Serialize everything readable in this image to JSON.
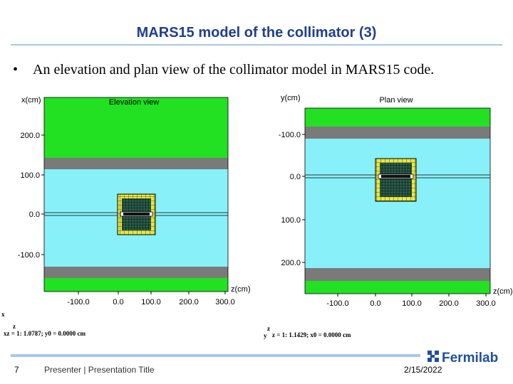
{
  "header": {
    "title": "MARS15 model of the collimator (3)"
  },
  "bullet": "An elevation and plan view of the collimator model in MARS15 code.",
  "panels": [
    {
      "title": "Elevation view",
      "y_label": "x(cm)",
      "x_label": "z(cm)",
      "y_ticks": [
        "200.0",
        "100.0",
        "0.0",
        "-100.0"
      ],
      "x_ticks": [
        "-100.0",
        "0.0",
        "100.0",
        "200.0",
        "300.0"
      ],
      "axis_marks": [
        "x",
        "z"
      ],
      "scale_note": "xz = 1: 1.0787; y0 = 0.0000 cm"
    },
    {
      "title": "Plan view",
      "y_label": "y(cm)",
      "x_label": "z(cm)",
      "y_ticks": [
        "-100.0",
        "0.0",
        "100.0",
        "200.0"
      ],
      "x_ticks": [
        "-100.0",
        "0.0",
        "100.0",
        "200.0",
        "300.0"
      ],
      "axis_marks": [
        "z",
        "y"
      ],
      "scale_note": "z = 1: 1.1429; x0 = 0.0000 cm"
    }
  ],
  "footer": {
    "page": "7",
    "presenter": "Presenter | Presentation Title",
    "date": "2/15/2022",
    "logo": "Fermilab"
  }
}
